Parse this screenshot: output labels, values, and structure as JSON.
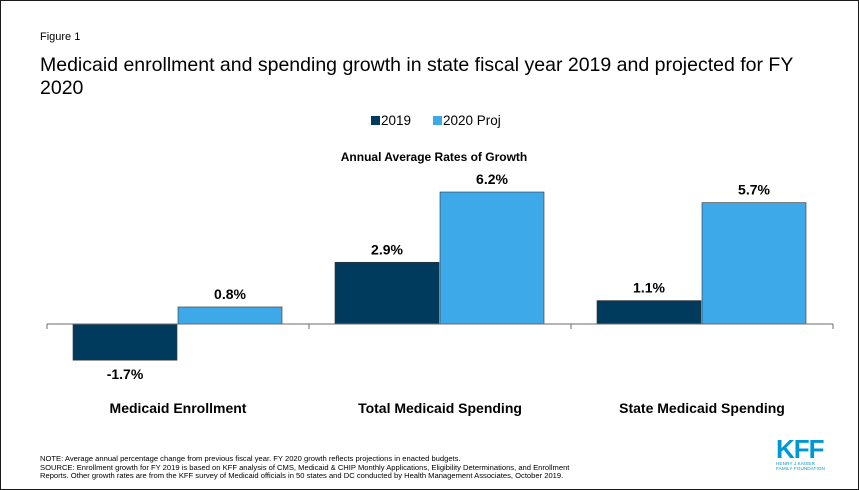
{
  "figure_label": "Figure 1",
  "title": "Medicaid enrollment and spending growth in state fiscal year 2019 and projected for FY 2020",
  "chart_data": {
    "type": "bar",
    "subtitle": "Annual Average Rates of Growth",
    "categories": [
      "Medicaid Enrollment",
      "Total Medicaid Spending",
      "State Medicaid Spending"
    ],
    "series": [
      {
        "name": "2019",
        "values": [
          -1.7,
          2.9,
          1.1
        ],
        "labels": [
          "-1.7%",
          "2.9%",
          "1.1%"
        ],
        "color": "#003a5d"
      },
      {
        "name": "2020 Proj",
        "values": [
          0.8,
          6.2,
          5.7
        ],
        "labels": [
          "0.8%",
          "6.2%",
          "5.7%"
        ],
        "color": "#3da9e8"
      }
    ],
    "legend_position": "top-center",
    "grid": false,
    "ylim": [
      -1.7,
      6.2
    ]
  },
  "note_lines": [
    "NOTE: Average annual percentage change from previous fiscal year. FY 2020 growth reflects projections in enacted budgets.",
    "SOURCE: Enrollment growth for FY 2019 is based on KFF analysis of CMS, Medicaid & CHIP Monthly Applications, Eligibility Determinations, and Enrollment",
    "Reports. Other growth rates are from the KFF survey of Medicaid officials in 50 states and DC conducted by Health Management Associates, October 2019."
  ],
  "logo": {
    "mark": "KFF",
    "line1": "HENRY J KAISER",
    "line2": "FAMILY FOUNDATION",
    "color": "#0098d4"
  }
}
